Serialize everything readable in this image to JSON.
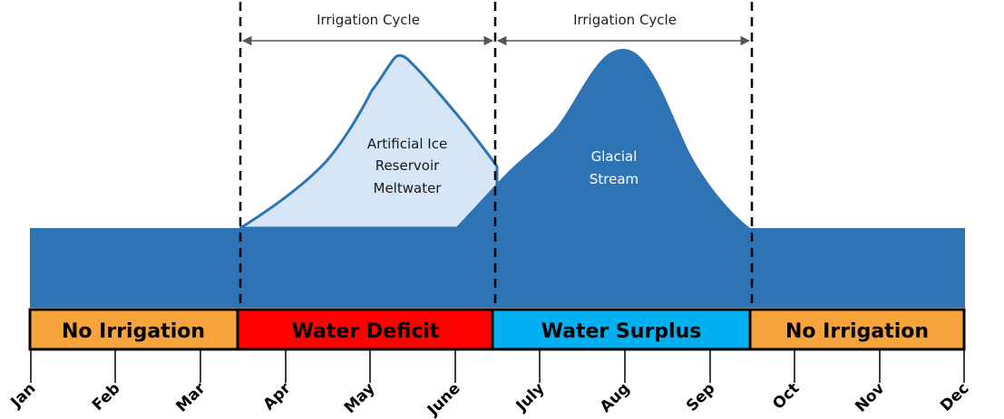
{
  "cycles": [
    {
      "label": "Irrigation Cycle"
    },
    {
      "label": "Irrigation Cycle"
    }
  ],
  "areas": {
    "reservoir": {
      "lines": [
        "Artificial Ice",
        "Reservoir",
        "Meltwater"
      ],
      "color": "#d6e6f7"
    },
    "glacial": {
      "lines": [
        "Glacial",
        "Stream"
      ],
      "color": "#2e74b5"
    }
  },
  "phases": [
    {
      "label": "No Irrigation",
      "color": "#f7a33c"
    },
    {
      "label": "Water Deficit",
      "color": "#ff0000"
    },
    {
      "label": "Water Surplus",
      "color": "#00b0f0"
    },
    {
      "label": "No Irrigation",
      "color": "#f7a33c"
    }
  ],
  "months": [
    "Jan",
    "Feb",
    "Mar",
    "Apr",
    "May",
    "June",
    "July",
    "Aug",
    "Sep",
    "Oct",
    "Nov",
    "Dec"
  ]
}
